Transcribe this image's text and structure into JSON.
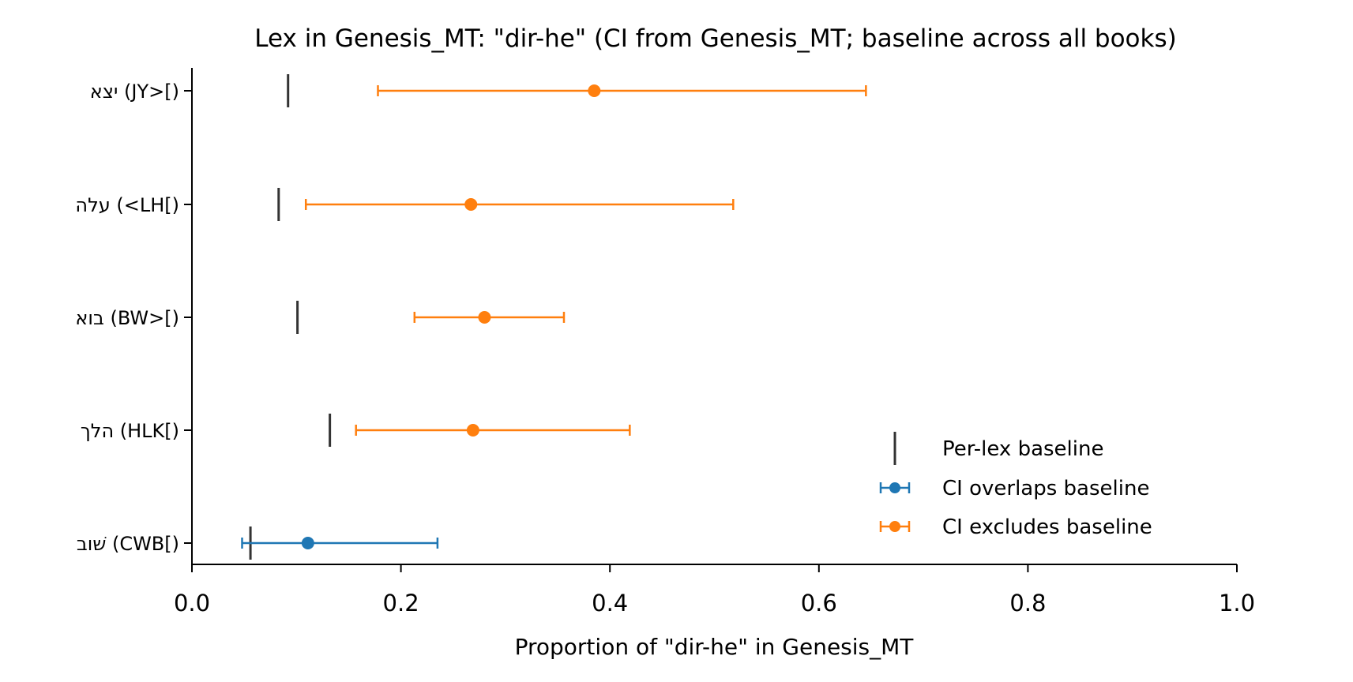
{
  "chart_data": {
    "type": "errorbar",
    "title": "Lex in Genesis_MT: \"dir-he\" (CI from Genesis_MT; baseline across all books)",
    "xlabel": "Proportion of \"dir-he\" in Genesis_MT",
    "ylabel": "",
    "xlim": [
      0.0,
      1.0
    ],
    "xticks": [
      0.0,
      0.2,
      0.4,
      0.6,
      0.8,
      1.0
    ],
    "xtick_labels": [
      "0.0",
      "0.2",
      "0.4",
      "0.6",
      "0.8",
      "1.0"
    ],
    "grid": false,
    "legend_placement": "lower-right",
    "categories": [
      "יצא (JY>[)",
      "עלה (<LH[)",
      "בוא (BW>[)",
      "הלך (HLK[)",
      "שׁוב (CWB[)"
    ],
    "points": [
      {
        "label": "יצא (JY>[)",
        "estimate": 0.385,
        "ci_low": 0.178,
        "ci_high": 0.645,
        "baseline": 0.092,
        "status": "excludes"
      },
      {
        "label": "עלה (<LH[)",
        "estimate": 0.267,
        "ci_low": 0.109,
        "ci_high": 0.518,
        "baseline": 0.083,
        "status": "excludes"
      },
      {
        "label": "בוא (BW>[)",
        "estimate": 0.28,
        "ci_low": 0.213,
        "ci_high": 0.356,
        "baseline": 0.101,
        "status": "excludes"
      },
      {
        "label": "הלך (HLK[)",
        "estimate": 0.269,
        "ci_low": 0.157,
        "ci_high": 0.419,
        "baseline": 0.132,
        "status": "excludes"
      },
      {
        "label": "שׁוב (CWB[)",
        "estimate": 0.111,
        "ci_low": 0.048,
        "ci_high": 0.235,
        "baseline": 0.056,
        "status": "overlaps"
      }
    ],
    "legend": [
      {
        "key": "baseline",
        "label": "Per-lex baseline"
      },
      {
        "key": "overlaps",
        "label": "CI overlaps baseline"
      },
      {
        "key": "excludes",
        "label": "CI excludes baseline"
      }
    ],
    "colors": {
      "overlaps": "#1f77b4",
      "excludes": "#ff7f0e",
      "baseline": "#333333",
      "axis": "#000000"
    }
  }
}
